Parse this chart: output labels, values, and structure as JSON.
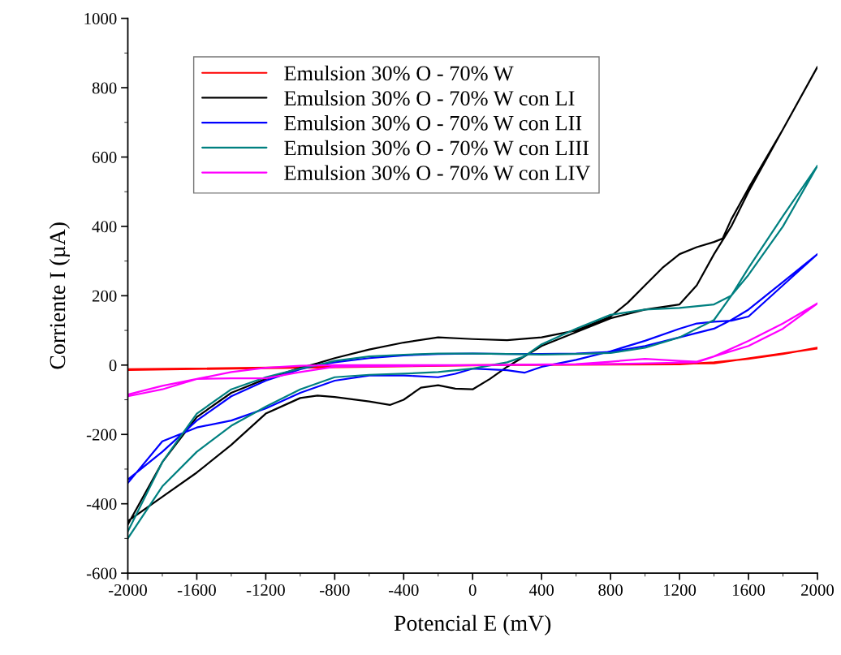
{
  "chart_data": {
    "type": "line",
    "xlabel": "Potencial E (mV)",
    "ylabel": "Corriente I (µA)",
    "xlim": [
      -2000,
      2000
    ],
    "xticks": [
      -2000,
      -1600,
      -1200,
      -800,
      -400,
      0,
      400,
      800,
      1200,
      1600,
      2000
    ],
    "ylim": [
      -600,
      1000
    ],
    "yticks": [
      -600,
      -400,
      -200,
      0,
      200,
      400,
      600,
      800,
      1000
    ],
    "grid": false,
    "legend": "top left",
    "line_style": "solid",
    "marker": "none",
    "series": [
      {
        "name": "Emulsion 30% O - 70% W",
        "color": "#ff0000",
        "x": [
          -2000,
          0,
          1200,
          1400,
          1600,
          1800,
          2000,
          2000,
          1400,
          0,
          -2000
        ],
        "values": [
          -12,
          0,
          2,
          8,
          18,
          32,
          50,
          48,
          5,
          -1,
          -14
        ]
      },
      {
        "name": "Emulsion 30% O - 70% W con LI",
        "color": "#000000",
        "x": [
          -2000,
          -1800,
          -1600,
          -1400,
          -1200,
          -1000,
          -900,
          -800,
          -600,
          -480,
          -400,
          -300,
          -200,
          -100,
          0,
          100,
          200,
          400,
          600,
          800,
          1000,
          1200,
          1300,
          1400,
          1500,
          1600,
          1800,
          2000,
          1800,
          1600,
          1500,
          1450,
          1400,
          1300,
          1200,
          1100,
          1000,
          900,
          800,
          600,
          400,
          200,
          0,
          -200,
          -400,
          -600,
          -800,
          -900,
          -1000,
          -1200,
          -1400,
          -1600,
          -1800,
          -2000
        ],
        "values": [
          -450,
          -380,
          -310,
          -230,
          -140,
          -95,
          -88,
          -92,
          -105,
          -115,
          -100,
          -65,
          -58,
          -68,
          -70,
          -40,
          -5,
          55,
          95,
          135,
          160,
          175,
          230,
          320,
          400,
          500,
          680,
          860,
          680,
          510,
          420,
          365,
          355,
          340,
          320,
          280,
          230,
          180,
          140,
          100,
          80,
          72,
          75,
          80,
          65,
          45,
          20,
          5,
          -8,
          -40,
          -80,
          -150,
          -280,
          -460
        ]
      },
      {
        "name": "Emulsion 30% O - 70% W con LII",
        "color": "#0000ff",
        "x": [
          -2000,
          -1800,
          -1600,
          -1400,
          -1200,
          -1000,
          -900,
          -800,
          -600,
          -400,
          -200,
          0,
          200,
          400,
          600,
          800,
          1000,
          1200,
          1400,
          1500,
          1600,
          1800,
          2000,
          1800,
          1600,
          1500,
          1400,
          1300,
          1200,
          1000,
          800,
          600,
          400,
          300,
          200,
          0,
          -100,
          -200,
          -400,
          -600,
          -800,
          -1000,
          -1200,
          -1400,
          -1600,
          -1800,
          -2000
        ],
        "values": [
          -330,
          -250,
          -160,
          -90,
          -45,
          -12,
          0,
          8,
          20,
          28,
          32,
          33,
          32,
          32,
          33,
          38,
          55,
          80,
          105,
          130,
          160,
          240,
          320,
          230,
          140,
          128,
          125,
          120,
          105,
          70,
          40,
          15,
          -5,
          -22,
          -15,
          -10,
          -25,
          -35,
          -30,
          -30,
          -45,
          -80,
          -125,
          -160,
          -180,
          -220,
          -340
        ]
      },
      {
        "name": "Emulsion 30% O - 70% W con LIII",
        "color": "#008080",
        "x": [
          -2000,
          -1800,
          -1600,
          -1400,
          -1200,
          -1000,
          -900,
          -800,
          -600,
          -400,
          -200,
          0,
          200,
          400,
          600,
          800,
          1000,
          1200,
          1400,
          1500,
          1600,
          1800,
          2000,
          1800,
          1600,
          1500,
          1400,
          1200,
          1000,
          800,
          600,
          400,
          300,
          200,
          0,
          -200,
          -400,
          -600,
          -800,
          -1000,
          -1200,
          -1400,
          -1600,
          -1800,
          -2000
        ],
        "values": [
          -480,
          -280,
          -140,
          -70,
          -35,
          -10,
          0,
          12,
          25,
          30,
          33,
          33,
          32,
          30,
          32,
          35,
          50,
          80,
          130,
          200,
          280,
          430,
          575,
          400,
          260,
          200,
          175,
          165,
          160,
          145,
          105,
          60,
          25,
          8,
          -10,
          -20,
          -25,
          -28,
          -35,
          -70,
          -120,
          -175,
          -250,
          -350,
          -500
        ]
      },
      {
        "name": "Emulsion 30% O - 70% W con LIV",
        "color": "#ff00ff",
        "x": [
          -2000,
          -1800,
          -1600,
          -1400,
          -1200,
          -1000,
          -800,
          0,
          800,
          1300,
          1400,
          1600,
          1800,
          2000,
          1800,
          1600,
          1400,
          1300,
          1200,
          1000,
          800,
          600,
          0,
          -800,
          -1000,
          -1200,
          -1400,
          -1600,
          -1800,
          -2000
        ],
        "values": [
          -85,
          -60,
          -40,
          -20,
          -8,
          -2,
          0,
          0,
          3,
          8,
          25,
          70,
          120,
          178,
          105,
          55,
          25,
          10,
          12,
          18,
          10,
          3,
          0,
          -5,
          -20,
          -38,
          -38,
          -40,
          -70,
          -90
        ]
      }
    ]
  }
}
